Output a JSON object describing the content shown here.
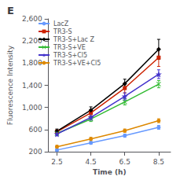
{
  "chart_data": {
    "type": "line",
    "title": "E",
    "xlabel": "Time (h)",
    "ylabel": "Fluorescence Intensity",
    "x": [
      2.5,
      4.5,
      6.5,
      8.5
    ],
    "xlim": [
      2.0,
      9.2
    ],
    "xticks": [
      2.5,
      4.5,
      6.5,
      8.5
    ],
    "ylim": [
      200,
      2600
    ],
    "yticks": [
      200,
      600,
      1000,
      1400,
      1800,
      2200,
      2600
    ],
    "grid": false,
    "legend": "upper left",
    "series": [
      {
        "name": "LacZ",
        "color": "#6699FF",
        "marker": "circle",
        "values": [
          230,
          360,
          490,
          640
        ],
        "errors": [
          20,
          25,
          30,
          35
        ]
      },
      {
        "name": "TR3-S",
        "color": "#CC2200",
        "marker": "square",
        "values": [
          560,
          900,
          1350,
          1900
        ],
        "errors": [
          35,
          55,
          90,
          160
        ]
      },
      {
        "name": "TR3-S+Lac Z",
        "color": "#000000",
        "marker": "diamond",
        "values": [
          570,
          950,
          1430,
          2050
        ],
        "errors": [
          40,
          60,
          80,
          180
        ]
      },
      {
        "name": "TR3-S+VE",
        "color": "#33BB33",
        "marker": "x",
        "values": [
          530,
          790,
          1100,
          1420
        ],
        "errors": [
          30,
          45,
          55,
          65
        ]
      },
      {
        "name": "TR3-S+Cl5",
        "color": "#4433CC",
        "marker": "star",
        "values": [
          520,
          820,
          1200,
          1600
        ],
        "errors": [
          35,
          50,
          65,
          80
        ]
      },
      {
        "name": "TR3-S+VE+Cl5",
        "color": "#DD8800",
        "marker": "circle",
        "values": [
          290,
          430,
          580,
          760
        ],
        "errors": [
          25,
          30,
          30,
          35
        ]
      }
    ]
  }
}
